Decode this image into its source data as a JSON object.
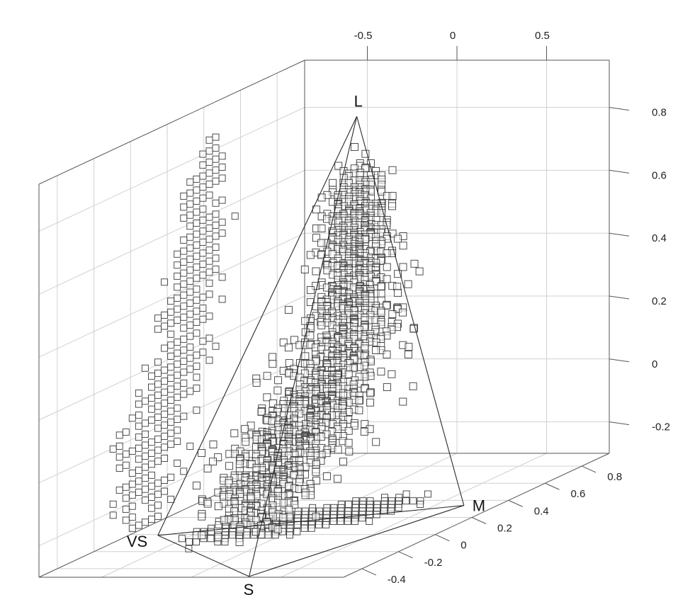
{
  "chart_data": {
    "type": "scatter",
    "projection": "3d",
    "title": "",
    "style": {
      "background": "#ffffff",
      "grid_color": "#d0d0d0",
      "edge_color": "#2a2a2a",
      "voxel_stroke": "#3a3a3a",
      "voxel_fill": "#ffffff"
    },
    "grid": true,
    "axes": {
      "x": {
        "ticks": [
          -0.5,
          0,
          0.5
        ],
        "labels": [
          "-0.5",
          "0",
          "0.5"
        ],
        "range": [
          -0.85,
          0.85
        ]
      },
      "y": {
        "ticks": [
          -0.4,
          -0.2,
          0,
          0.2,
          0.4,
          0.6,
          0.8
        ],
        "labels": [
          "-0.4",
          "-0.2",
          "0",
          "0.2",
          "0.4",
          "0.6",
          "0.8"
        ],
        "range": [
          -0.5,
          0.95
        ]
      },
      "z": {
        "ticks": [
          -0.2,
          0,
          0.2,
          0.4,
          0.6,
          0.8
        ],
        "labels": [
          "-0.2",
          "0",
          "0.2",
          "0.4",
          "0.6",
          "0.8"
        ],
        "range": [
          -0.3,
          0.95
        ]
      }
    },
    "tetrahedron": {
      "vertices": [
        {
          "label": "L",
          "x": -0.15,
          "y": 0.55,
          "z": 0.88
        },
        {
          "label": "M",
          "x": 0.55,
          "y": 0.45,
          "z": -0.33
        },
        {
          "label": "S",
          "x": 0.2,
          "y": -0.38,
          "z": -0.33
        },
        {
          "label": "VS",
          "x": -0.8,
          "y": 0.1,
          "z": -0.33
        }
      ]
    },
    "point_clouds": [
      {
        "id": "main-cloud",
        "count": 1800,
        "seed": 11,
        "path": [
          {
            "x": -0.3,
            "y": 0.05,
            "z": -0.25,
            "spread": 0.08
          },
          {
            "x": -0.1,
            "y": 0.15,
            "z": -0.05,
            "spread": 0.09
          },
          {
            "x": 0.08,
            "y": 0.25,
            "z": 0.18,
            "spread": 0.09
          },
          {
            "x": 0.05,
            "y": 0.35,
            "z": 0.45,
            "spread": 0.08
          },
          {
            "x": -0.02,
            "y": 0.42,
            "z": 0.7,
            "spread": 0.05
          }
        ]
      },
      {
        "id": "wall-projection-cloud",
        "count": 650,
        "seed": 23,
        "flat_axis": "x",
        "flat_value": -0.85,
        "path": [
          {
            "y": 0.05,
            "z": -0.18,
            "spread": 0.09
          },
          {
            "y": 0.18,
            "z": 0.05,
            "spread": 0.08
          },
          {
            "y": 0.3,
            "z": 0.3,
            "spread": 0.07
          },
          {
            "y": 0.38,
            "z": 0.58,
            "spread": 0.05
          },
          {
            "y": 0.42,
            "z": 0.8,
            "spread": 0.03
          }
        ]
      },
      {
        "id": "floor-projection-cloud",
        "count": 520,
        "seed": 37,
        "flat_axis": "z",
        "flat_value": -0.3,
        "path": [
          {
            "x": -0.35,
            "y": -0.05,
            "spread": 0.07
          },
          {
            "x": -0.1,
            "y": 0.05,
            "spread": 0.08
          },
          {
            "x": 0.15,
            "y": 0.15,
            "spread": 0.08
          },
          {
            "x": 0.35,
            "y": 0.25,
            "spread": 0.06
          }
        ]
      }
    ]
  }
}
